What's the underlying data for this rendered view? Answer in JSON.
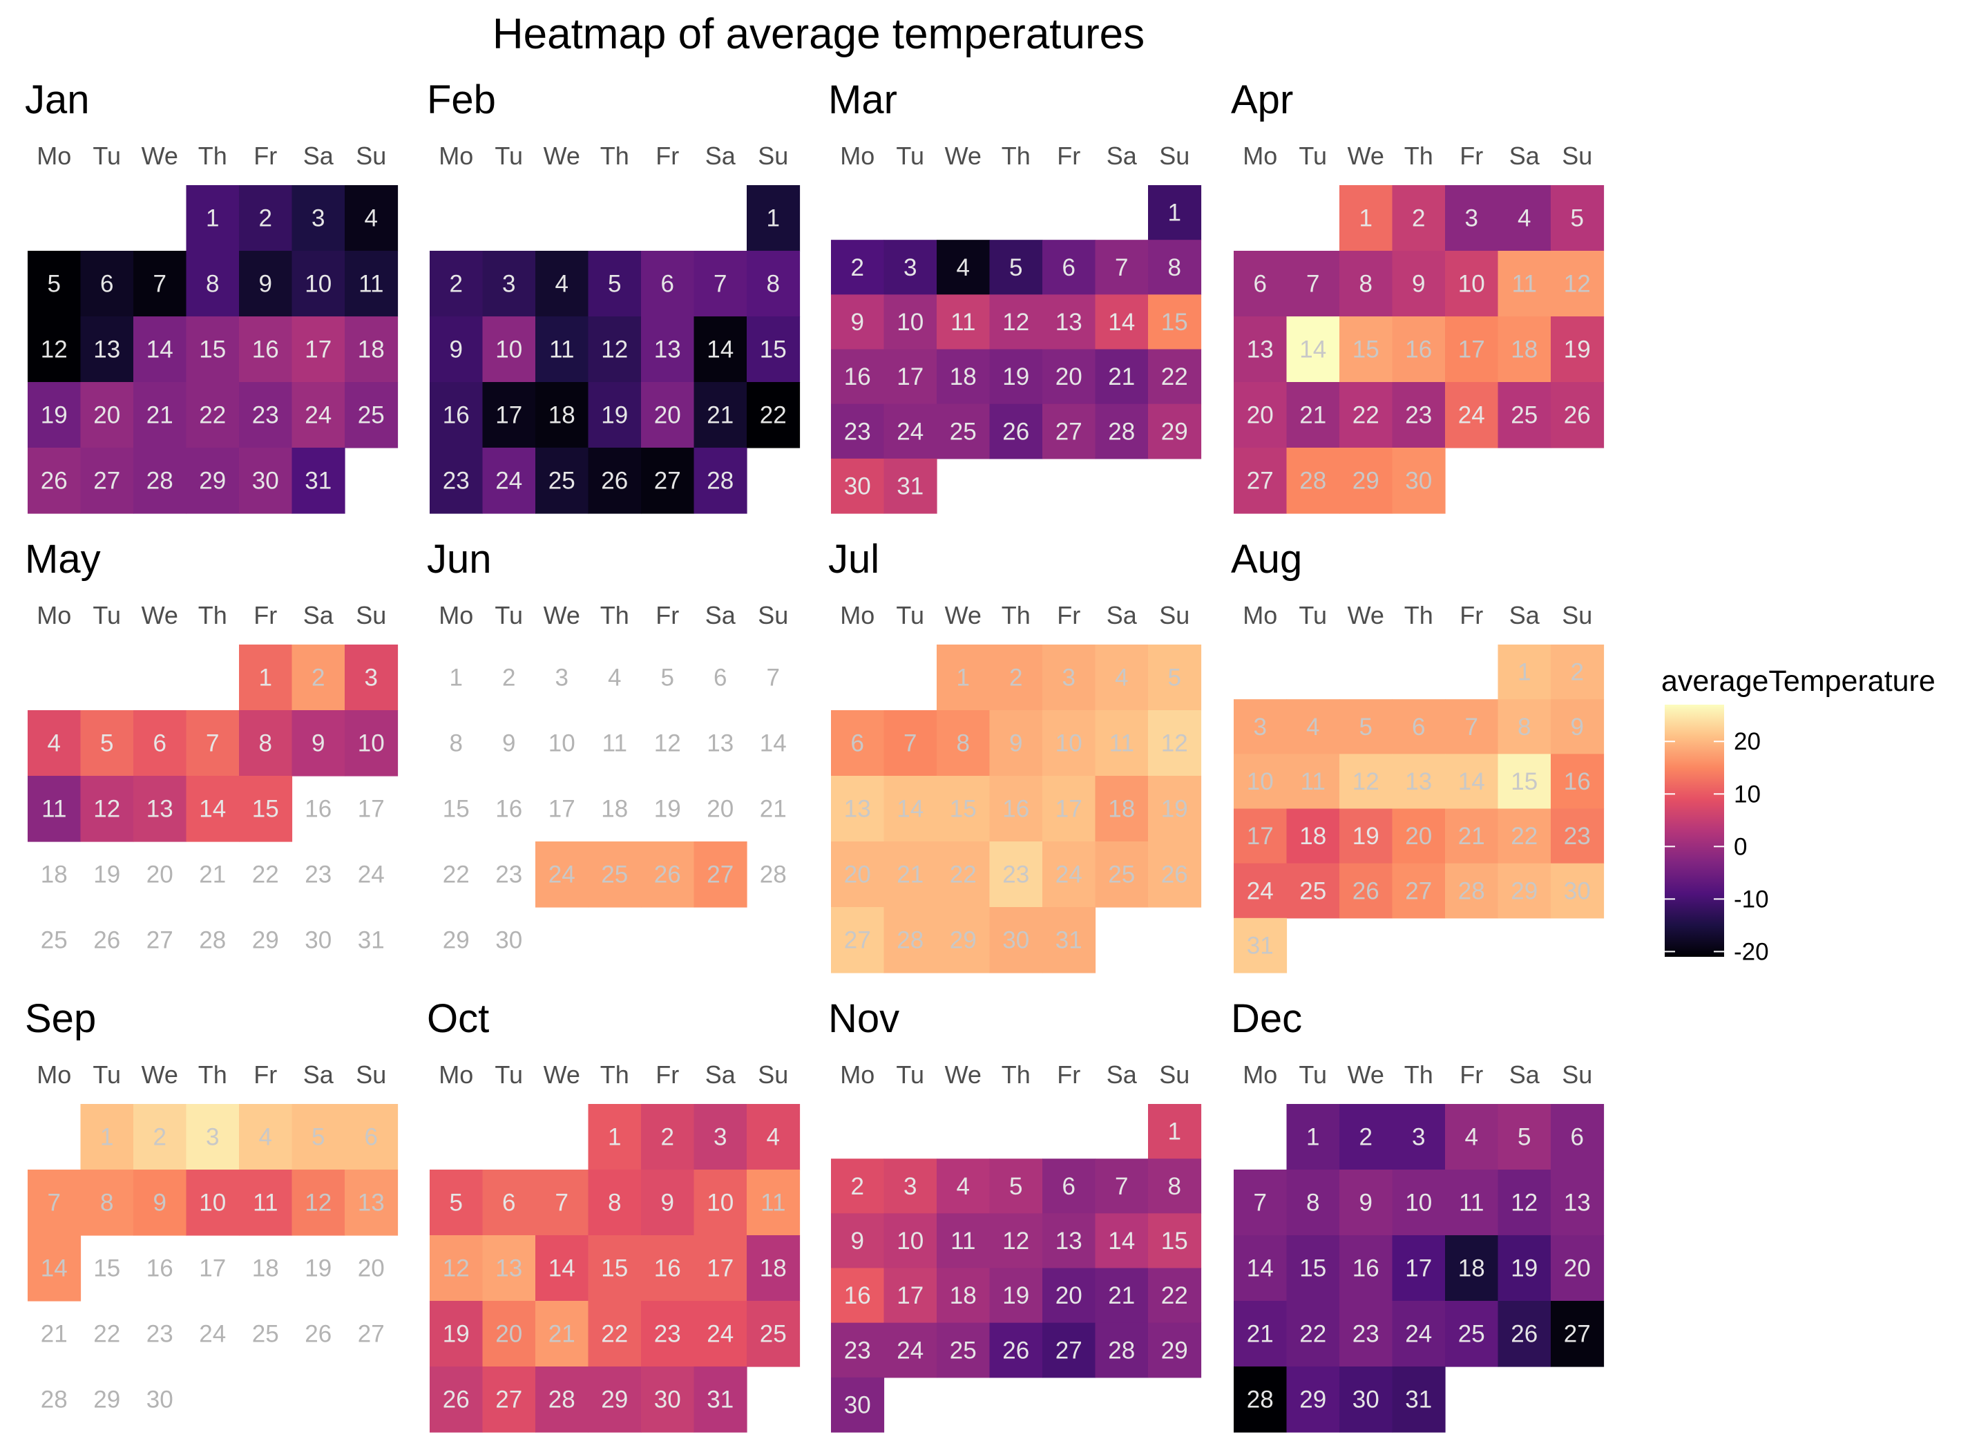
{
  "chart_data": {
    "type": "heatmap",
    "title": "Heatmap of average temperatures",
    "legend": {
      "title": "averageTemperature",
      "ticks": [
        20,
        10,
        0,
        -10,
        -20
      ],
      "range": [
        -21,
        27
      ],
      "placement": "right"
    },
    "weekdays": [
      "Mo",
      "Tu",
      "We",
      "Th",
      "Fr",
      "Sa",
      "Su"
    ],
    "first_weekday_index": [
      3,
      6,
      6,
      2,
      4,
      0,
      2,
      5,
      1,
      3,
      6,
      1
    ],
    "months": [
      {
        "name": "Jan",
        "values": [
          -10,
          -12,
          -15,
          -19,
          -21,
          -18,
          -20,
          -10,
          -17,
          -14,
          -16,
          -21,
          -17,
          -4,
          -2,
          0,
          2,
          -1,
          -5,
          -1,
          -3,
          -2,
          -3,
          0,
          -3,
          -1,
          -2,
          -3,
          -3,
          -2,
          -9
        ]
      },
      {
        "name": "Feb",
        "values": [
          -16,
          -12,
          -13,
          -17,
          -11,
          -6,
          -7,
          -8,
          -11,
          -2,
          -15,
          -13,
          -6,
          -20,
          -10,
          -12,
          -19,
          -20,
          -12,
          -4,
          -17,
          -21,
          -12,
          -6,
          -17,
          -19,
          -20,
          -10
        ]
      },
      {
        "name": "Mar",
        "values": [
          -11,
          -9,
          -10,
          -19,
          -12,
          -6,
          -2,
          -3,
          3,
          0,
          5,
          2,
          2,
          7,
          15,
          -1,
          -1,
          -3,
          -4,
          -3,
          -5,
          -1,
          -3,
          -2,
          -2,
          -6,
          -1,
          -3,
          2,
          7,
          5
        ]
      },
      {
        "name": "Apr",
        "values": [
          12,
          5,
          -2,
          -2,
          3,
          0,
          0,
          2,
          4,
          6,
          17,
          17,
          2,
          27,
          18,
          17,
          15,
          16,
          6,
          3,
          0,
          3,
          1,
          12,
          3,
          4,
          4,
          15,
          15,
          16
        ]
      },
      {
        "name": "May",
        "values": [
          12,
          17,
          8,
          8,
          12,
          10,
          12,
          6,
          3,
          2,
          -2,
          4,
          5,
          10,
          10,
          null,
          null,
          null,
          null,
          null,
          null,
          null,
          null,
          null,
          null,
          null,
          null,
          null,
          null,
          null,
          null
        ]
      },
      {
        "name": "Jun",
        "values": [
          null,
          null,
          null,
          null,
          null,
          null,
          null,
          null,
          null,
          null,
          null,
          null,
          null,
          null,
          null,
          null,
          null,
          null,
          null,
          null,
          null,
          null,
          null,
          18,
          18,
          18,
          16,
          null,
          null,
          null
        ]
      },
      {
        "name": "Jul",
        "values": [
          18,
          18,
          19,
          20,
          21,
          16,
          15,
          16,
          19,
          20,
          21,
          23,
          22,
          21,
          21,
          20,
          21,
          17,
          20,
          20,
          20,
          20,
          23,
          20,
          19,
          20,
          22,
          20,
          20,
          19,
          19
        ]
      },
      {
        "name": "Aug",
        "values": [
          21,
          20,
          18,
          18,
          18,
          18,
          18,
          20,
          19,
          19,
          19,
          22,
          22,
          22,
          26,
          15,
          13,
          9,
          12,
          15,
          17,
          18,
          14,
          11,
          11,
          14,
          16,
          19,
          20,
          21,
          22
        ]
      },
      {
        "name": "Sep",
        "values": [
          21,
          23,
          25,
          22,
          21,
          21,
          16,
          16,
          15,
          10,
          10,
          14,
          17,
          16,
          null,
          null,
          null,
          null,
          null,
          null,
          null,
          null,
          null,
          null,
          null,
          null,
          null,
          null,
          null,
          null
        ]
      },
      {
        "name": "Oct",
        "values": [
          10,
          7,
          5,
          8,
          10,
          12,
          12,
          9,
          8,
          11,
          16,
          17,
          18,
          9,
          11,
          11,
          11,
          3,
          7,
          14,
          17,
          11,
          9,
          9,
          7,
          5,
          8,
          4,
          4,
          5,
          3
        ]
      },
      {
        "name": "Nov",
        "values": [
          7,
          8,
          7,
          3,
          2,
          -2,
          -1,
          0,
          5,
          4,
          0,
          0,
          -1,
          3,
          5,
          10,
          5,
          1,
          -1,
          -6,
          -5,
          -2,
          -1,
          -1,
          -2,
          -8,
          -10,
          -5,
          -3,
          -3
        ]
      },
      {
        "name": "Dec",
        "values": [
          -6,
          -8,
          -8,
          -1,
          0,
          -3,
          -3,
          -4,
          -2,
          -3,
          -3,
          -5,
          -3,
          -4,
          -6,
          -4,
          -9,
          -16,
          -10,
          -4,
          -7,
          -6,
          -4,
          -6,
          -7,
          -13,
          -20,
          -21,
          -8,
          -10,
          -11
        ]
      }
    ]
  }
}
